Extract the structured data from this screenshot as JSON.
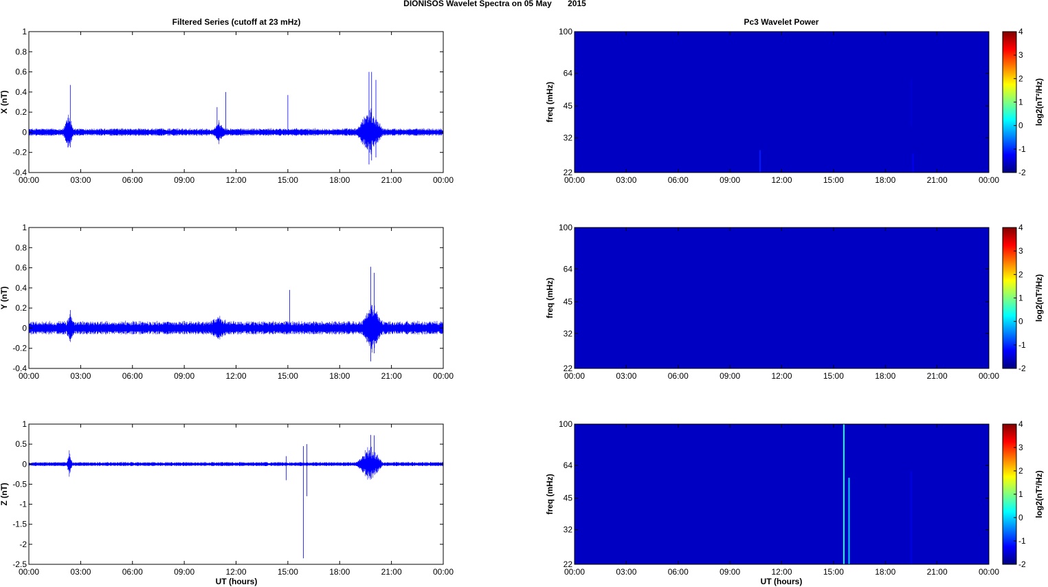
{
  "figure": {
    "title": "DIONISOS Wavelet Spectra on 05 May       2015",
    "left_column_title": "Filtered Series (cutoff at 23 mHz)",
    "right_column_title": "Pc3 Wavelet Power",
    "xlabel": "UT (hours)",
    "colors": {
      "trace": "#0000ff",
      "spectrum_background": "#00008f",
      "axis": "#000000"
    }
  },
  "chart_data": [
    {
      "type": "line",
      "panel": "filtered-x",
      "title": "Filtered Series (cutoff at 23 mHz)",
      "ylabel": "X (nT)",
      "xlabel": "",
      "xlim": [
        0,
        24
      ],
      "ylim": [
        -0.4,
        1
      ],
      "yticks": [
        -0.4,
        -0.2,
        0,
        0.2,
        0.4,
        0.6,
        0.8,
        1
      ],
      "ytick_labels": [
        "-0.4",
        "-0.2",
        "0",
        "0.2",
        "0.4",
        "0.6",
        "0.8",
        "1"
      ],
      "xtick_labels": [
        "00:00",
        "03:00",
        "06:00",
        "09:00",
        "12:00",
        "15:00",
        "18:00",
        "21:00",
        "00:00"
      ],
      "noise_amplitude": 0.025,
      "bursts": [
        {
          "x": [
            2.0,
            2.6
          ],
          "amp": 0.13
        },
        {
          "x": [
            10.7,
            11.3
          ],
          "amp": 0.07
        },
        {
          "x": [
            19.0,
            20.5
          ],
          "amp": 0.18
        }
      ],
      "spikes": [
        {
          "x": 2.4,
          "min": -0.15,
          "max": 0.47
        },
        {
          "x": 10.9,
          "min": -0.05,
          "max": 0.25
        },
        {
          "x": 11.4,
          "min": -0.02,
          "max": 0.4
        },
        {
          "x": 15.0,
          "min": -0.02,
          "max": 0.37
        },
        {
          "x": 19.7,
          "min": -0.32,
          "max": 0.6
        },
        {
          "x": 19.85,
          "min": -0.28,
          "max": 0.6
        },
        {
          "x": 20.1,
          "min": -0.25,
          "max": 0.52
        }
      ]
    },
    {
      "type": "line",
      "panel": "filtered-y",
      "ylabel": "Y (nT)",
      "xlabel": "",
      "xlim": [
        0,
        24
      ],
      "ylim": [
        -0.4,
        1
      ],
      "yticks": [
        -0.4,
        -0.2,
        0,
        0.2,
        0.4,
        0.6,
        0.8,
        1
      ],
      "ytick_labels": [
        "-0.4",
        "-0.2",
        "0",
        "0.2",
        "0.4",
        "0.6",
        "0.8",
        "1"
      ],
      "xtick_labels": [
        "00:00",
        "03:00",
        "06:00",
        "09:00",
        "12:00",
        "15:00",
        "18:00",
        "21:00",
        "00:00"
      ],
      "noise_amplitude": 0.045,
      "bursts": [
        {
          "x": [
            2.2,
            2.6
          ],
          "amp": 0.09
        },
        {
          "x": [
            10.5,
            11.5
          ],
          "amp": 0.05
        },
        {
          "x": [
            19.3,
            20.5
          ],
          "amp": 0.17
        }
      ],
      "spikes": [
        {
          "x": 2.4,
          "min": -0.1,
          "max": 0.18
        },
        {
          "x": 15.1,
          "min": -0.05,
          "max": 0.38
        },
        {
          "x": 19.8,
          "min": -0.33,
          "max": 0.61
        },
        {
          "x": 20.0,
          "min": -0.25,
          "max": 0.55
        }
      ]
    },
    {
      "type": "line",
      "panel": "filtered-z",
      "ylabel": "Z (nT)",
      "xlabel": "UT (hours)",
      "xlim": [
        0,
        24
      ],
      "ylim": [
        -2.5,
        1
      ],
      "yticks": [
        -2.5,
        -2,
        -1.5,
        -1,
        -0.5,
        0,
        0.5,
        1
      ],
      "ytick_labels": [
        "-2.5",
        "-2",
        "-1.5",
        "-1",
        "-0.5",
        "0",
        "0.5",
        "1"
      ],
      "xtick_labels": [
        "00:00",
        "03:00",
        "06:00",
        "09:00",
        "12:00",
        "15:00",
        "18:00",
        "21:00",
        "00:00"
      ],
      "noise_amplitude": 0.035,
      "bursts": [
        {
          "x": [
            2.2,
            2.5
          ],
          "amp": 0.25
        },
        {
          "x": [
            19.0,
            20.5
          ],
          "amp": 0.35
        }
      ],
      "spikes": [
        {
          "x": 14.9,
          "min": -0.4,
          "max": 0.2
        },
        {
          "x": 15.9,
          "min": -2.35,
          "max": 0.45
        },
        {
          "x": 16.1,
          "min": -0.8,
          "max": 0.5
        },
        {
          "x": 19.8,
          "min": -0.3,
          "max": 0.73
        },
        {
          "x": 20.0,
          "min": -0.2,
          "max": 0.72
        }
      ]
    },
    {
      "type": "heatmap",
      "panel": "wavelet-x",
      "title": "Pc3 Wavelet Power",
      "ylabel": "freq (mHz)",
      "xlim": [
        0,
        24
      ],
      "ylim": [
        22,
        100
      ],
      "yscale": "log",
      "ytick_labels": [
        "22",
        "32",
        "45",
        "64",
        "100"
      ],
      "xtick_labels": [
        "00:00",
        "03:00",
        "06:00",
        "09:00",
        "12:00",
        "15:00",
        "18:00",
        "21:00",
        "00:00"
      ],
      "colorbar": {
        "label": "log2(nT²/Hz)",
        "range": [
          -2,
          4
        ],
        "tick_labels": [
          "-2",
          "-1",
          "0",
          "1",
          "2",
          "3",
          "4"
        ],
        "colormap": "jet"
      },
      "background_value": -1.6,
      "features": [
        {
          "x": 10.75,
          "fmin": 22,
          "fmax": 28,
          "value": -1.1
        },
        {
          "x": 19.6,
          "fmin": 22,
          "fmax": 27,
          "value": -1.3
        },
        {
          "x": 19.5,
          "fmin": 36,
          "fmax": 60,
          "value": -1.5
        }
      ]
    },
    {
      "type": "heatmap",
      "panel": "wavelet-y",
      "ylabel": "freq (mHz)",
      "xlim": [
        0,
        24
      ],
      "ylim": [
        22,
        100
      ],
      "yscale": "log",
      "ytick_labels": [
        "22",
        "32",
        "45",
        "64",
        "100"
      ],
      "xtick_labels": [
        "00:00",
        "03:00",
        "06:00",
        "09:00",
        "12:00",
        "15:00",
        "18:00",
        "21:00",
        "00:00"
      ],
      "colorbar": {
        "label": "log2(nT²/Hz)",
        "range": [
          -2,
          4
        ],
        "tick_labels": [
          "-2",
          "-1",
          "0",
          "1",
          "2",
          "3",
          "4"
        ],
        "colormap": "jet"
      },
      "background_value": -1.6,
      "features": []
    },
    {
      "type": "heatmap",
      "panel": "wavelet-z",
      "ylabel": "freq (mHz)",
      "xlabel": "UT (hours)",
      "xlim": [
        0,
        24
      ],
      "ylim": [
        22,
        100
      ],
      "yscale": "log",
      "ytick_labels": [
        "22",
        "32",
        "45",
        "64",
        "100"
      ],
      "xtick_labels": [
        "00:00",
        "03:00",
        "06:00",
        "09:00",
        "12:00",
        "15:00",
        "18:00",
        "21:00",
        "00:00"
      ],
      "colorbar": {
        "label": "log2(nT²/Hz)",
        "range": [
          -2,
          4
        ],
        "tick_labels": [
          "-2",
          "-1",
          "0",
          "1",
          "2",
          "3",
          "4"
        ],
        "colormap": "jet"
      },
      "background_value": -1.6,
      "features": [
        {
          "x": 15.6,
          "fmin": 22,
          "fmax": 100,
          "value": 0.3
        },
        {
          "x": 15.9,
          "fmin": 22,
          "fmax": 56,
          "value": 0.0
        },
        {
          "x": 19.5,
          "fmin": 22,
          "fmax": 60,
          "value": -1.4
        }
      ]
    }
  ]
}
